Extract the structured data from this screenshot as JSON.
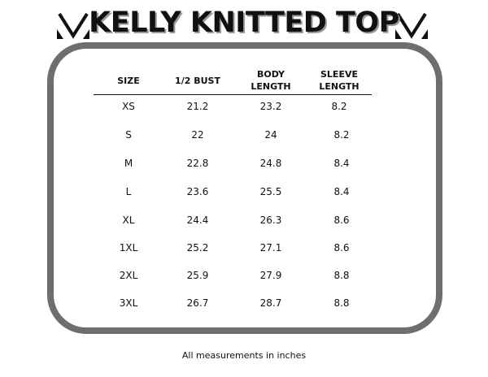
{
  "title": "KELLY KNITTED TOP",
  "headers": [
    "SIZE",
    "1/2 BUST",
    "BODY\nLENGTH",
    "SLEEVE\nLENGTH"
  ],
  "rows": [
    [
      "XS",
      "21.2",
      "23.2",
      "8.2"
    ],
    [
      "S",
      "22",
      "24",
      "8.2"
    ],
    [
      "M",
      "22.8",
      "24.8",
      "8.4"
    ],
    [
      "L",
      "23.6",
      "25.5",
      "8.4"
    ],
    [
      "XL",
      "24.4",
      "26.3",
      "8.6"
    ],
    [
      "1XL",
      "25.2",
      "27.1",
      "8.6"
    ],
    [
      "2XL",
      "25.9",
      "27.9",
      "8.8"
    ],
    [
      "3XL",
      "26.7",
      "28.7",
      "8.8"
    ]
  ],
  "footer": "All measurements in inches",
  "colors": {
    "border": "#6e6e6e",
    "text": "#111111",
    "title_shadow": "#999999"
  }
}
